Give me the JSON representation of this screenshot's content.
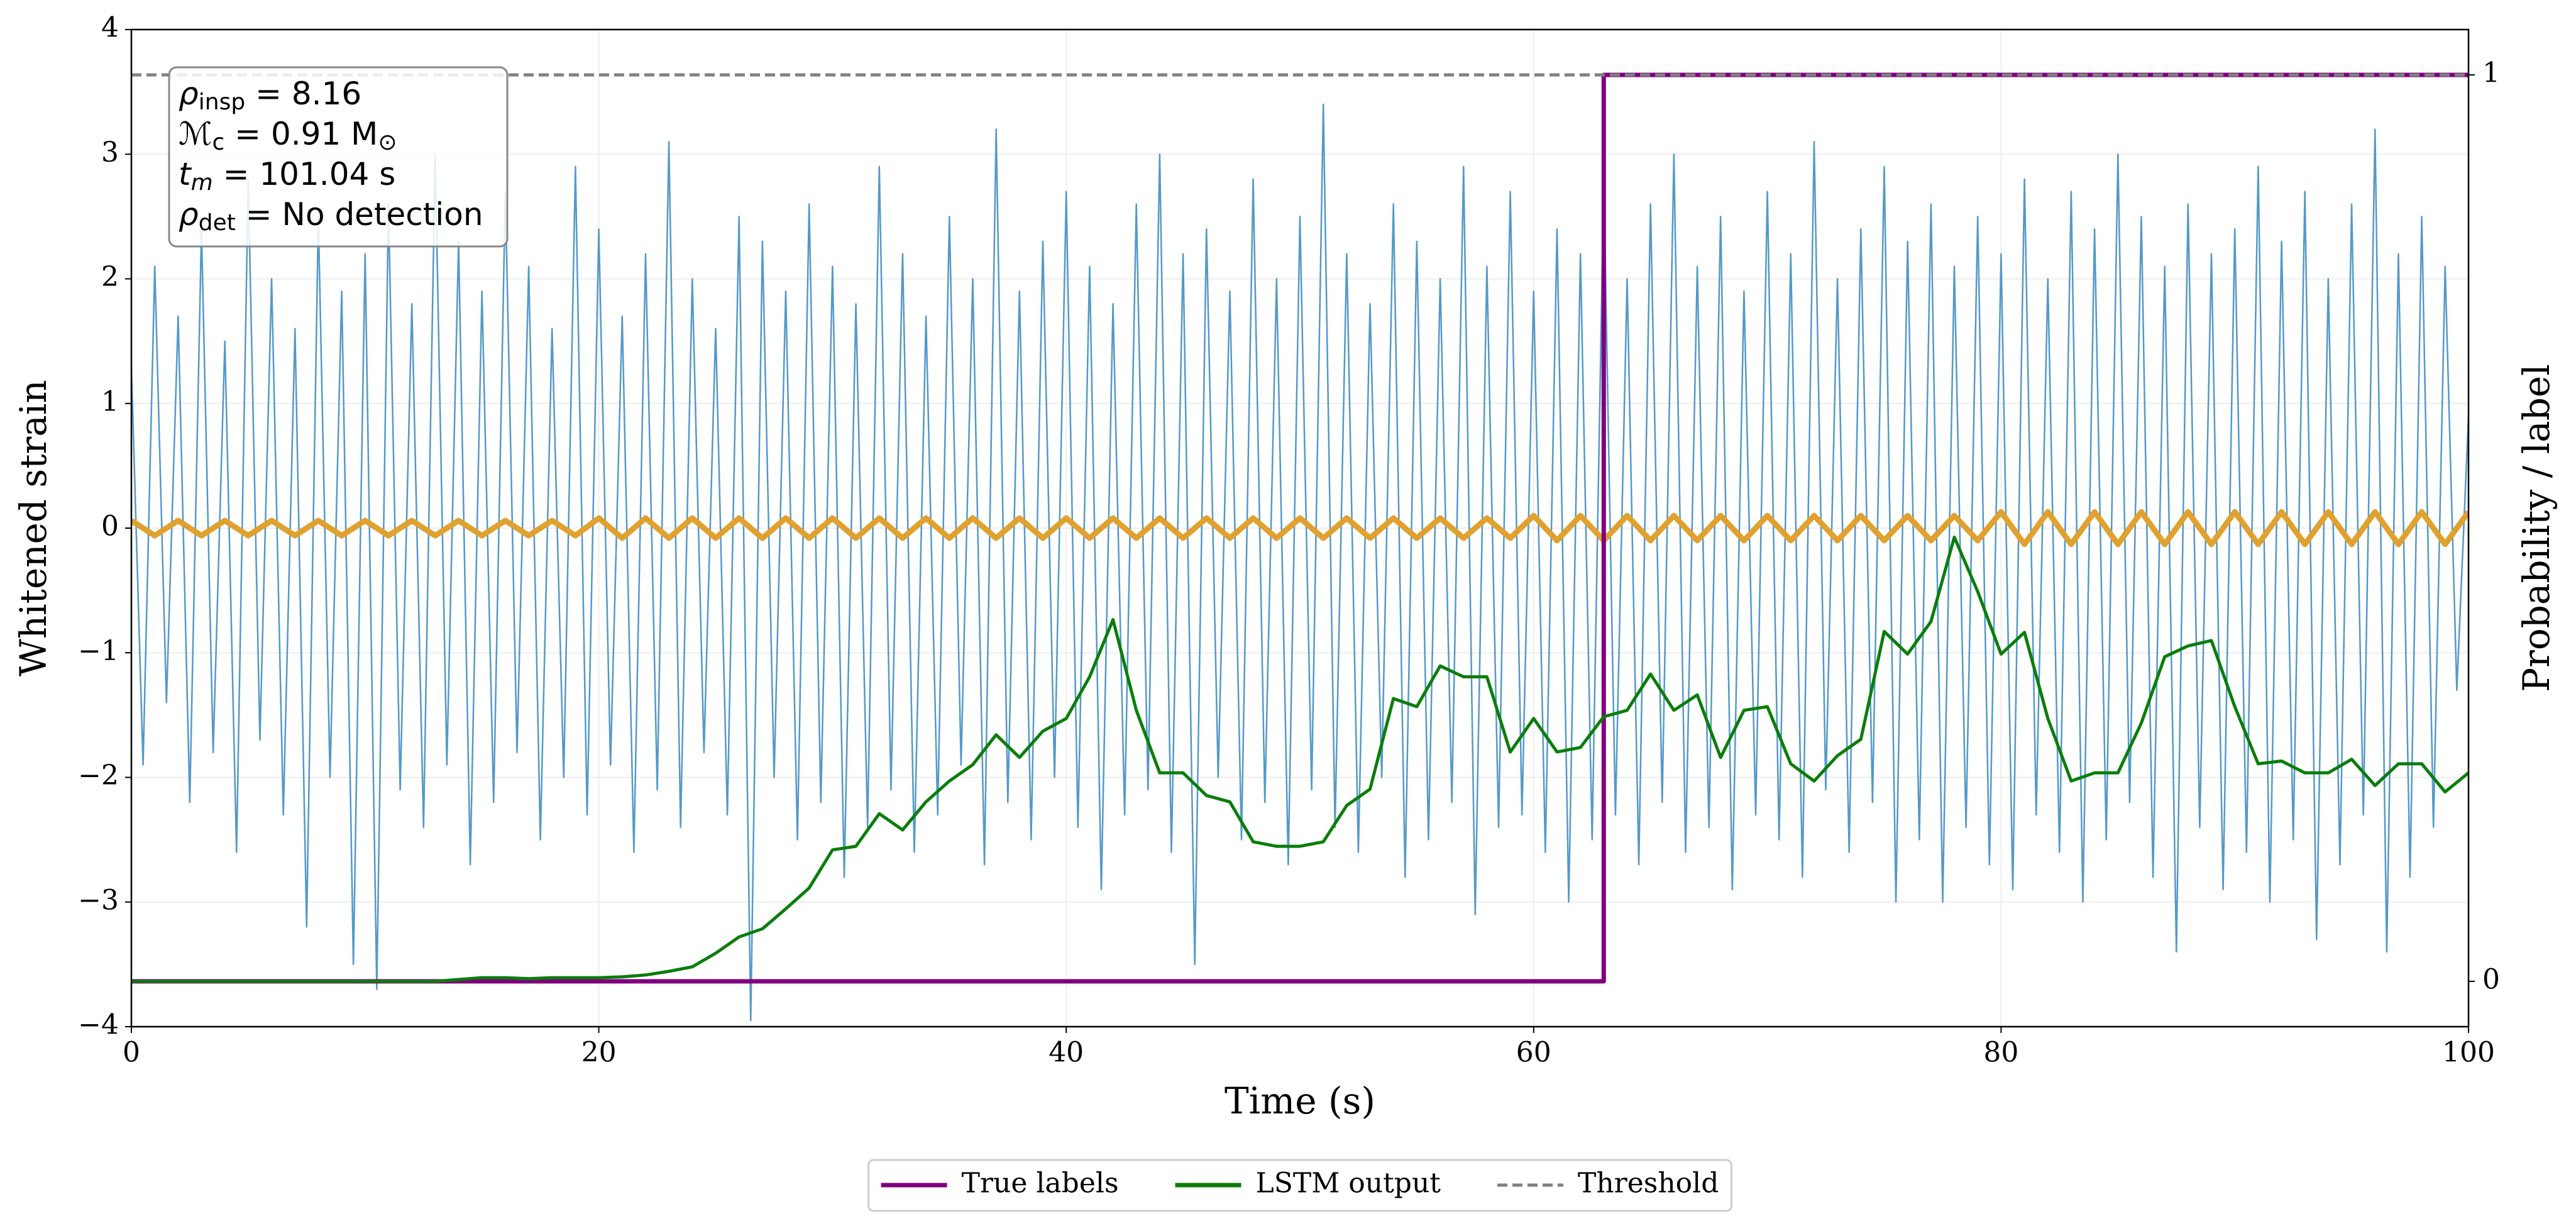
{
  "chart_data": {
    "type": "line",
    "xlabel": "Time (s)",
    "ylabel": "Whitened strain",
    "y2label": "Probability / label",
    "xlim": [
      0,
      100
    ],
    "xticks": [
      0,
      20,
      40,
      60,
      80,
      100
    ],
    "ylim": [
      -4,
      4
    ],
    "yticks": [
      {
        "value": -4,
        "label": "−4"
      },
      {
        "value": -3,
        "label": "−3"
      },
      {
        "value": -2,
        "label": "−2"
      },
      {
        "value": -1,
        "label": "−1"
      },
      0,
      1,
      2,
      3,
      4
    ],
    "y2lim": [
      -0.05,
      1.05
    ],
    "y2ticks": [
      0,
      1
    ],
    "grid": true,
    "legend": "below",
    "annotation": [
      {
        "symbol": "ρ",
        "subscript": "insp",
        "text": " = 8.16"
      },
      {
        "symbol": "ℳ",
        "subscript": "c",
        "text": " = 0.91 M",
        "unit_subscript": "⊙"
      },
      {
        "symbol": "t",
        "subscript": "m",
        "text": " = 101.04 s"
      },
      {
        "symbol": "ρ",
        "subscript": "det",
        "text": " = No detection"
      }
    ],
    "series": [
      {
        "color": "#5499c7",
        "x": [
          0,
          0.5,
          1,
          1.5,
          2,
          2.5,
          3,
          3.5,
          4,
          4.5,
          5,
          5.5,
          6,
          6.5,
          7,
          7.5,
          8,
          8.5,
          9,
          9.5,
          10,
          10.5,
          11,
          11.5,
          12,
          12.5,
          13,
          13.5,
          14,
          14.5,
          15,
          15.5,
          16,
          16.5,
          17,
          17.5,
          18,
          18.5,
          19,
          19.5,
          20,
          20.5,
          21,
          21.5,
          22,
          22.5,
          23,
          23.5,
          24,
          24.5,
          25,
          25.5,
          26,
          26.5,
          27,
          27.5,
          28,
          28.5,
          29,
          29.5,
          30,
          30.5,
          31,
          31.5,
          32,
          32.5,
          33,
          33.5,
          34,
          34.5,
          35,
          35.5,
          36,
          36.5,
          37,
          37.5,
          38,
          38.5,
          39,
          39.5,
          40,
          40.5,
          41,
          41.5,
          42,
          42.5,
          43,
          43.5,
          44,
          44.5,
          45,
          45.5,
          46,
          46.5,
          47,
          47.5,
          48,
          48.5,
          49,
          49.5,
          50,
          50.5,
          51,
          51.5,
          52,
          52.5,
          53,
          53.5,
          54,
          54.5,
          55,
          55.5,
          56,
          56.5,
          57,
          57.5,
          58,
          58.5,
          59,
          59.5,
          60,
          60.5,
          61,
          61.5,
          62,
          62.5,
          63,
          63.5,
          64,
          64.5,
          65,
          65.5,
          66,
          66.5,
          67,
          67.5,
          68,
          68.5,
          69,
          69.5,
          70,
          70.5,
          71,
          71.5,
          72,
          72.5,
          73,
          73.5,
          74,
          74.5,
          75,
          75.5,
          76,
          76.5,
          77,
          77.5,
          78,
          78.5,
          79,
          79.5,
          80,
          80.5,
          81,
          81.5,
          82,
          82.5,
          83,
          83.5,
          84,
          84.5,
          85,
          85.5,
          86,
          86.5,
          87,
          87.5,
          88,
          88.5,
          89,
          89.5,
          90,
          90.5,
          91,
          91.5,
          92,
          92.5,
          93,
          93.5,
          94,
          94.5,
          95,
          95.5,
          96,
          96.5,
          97,
          97.5,
          98,
          98.5,
          99,
          99.5,
          100
        ],
        "values": [
          1.3,
          -1.9,
          2.1,
          -1.4,
          1.7,
          -2.2,
          2.4,
          -1.8,
          1.5,
          -2.6,
          2.8,
          -1.7,
          2.0,
          -2.3,
          1.6,
          -3.2,
          2.5,
          -2.0,
          1.9,
          -3.5,
          2.2,
          -3.7,
          2.6,
          -2.1,
          1.8,
          -2.4,
          3.0,
          -1.9,
          2.3,
          -2.7,
          1.9,
          -2.2,
          2.7,
          -1.8,
          2.1,
          -2.5,
          1.6,
          -2.0,
          2.9,
          -2.3,
          2.4,
          -1.9,
          1.7,
          -2.6,
          2.2,
          -2.1,
          3.1,
          -2.4,
          2.0,
          -1.8,
          1.6,
          -2.3,
          2.5,
          -3.95,
          2.3,
          -2.0,
          1.9,
          -2.5,
          2.6,
          -2.2,
          2.1,
          -2.8,
          1.8,
          -2.4,
          2.9,
          -2.1,
          2.2,
          -2.6,
          1.7,
          -2.3,
          2.5,
          -1.9,
          2.0,
          -2.7,
          3.2,
          -2.2,
          1.9,
          -2.5,
          2.3,
          -2.0,
          2.7,
          -2.4,
          2.1,
          -2.9,
          1.8,
          -2.3,
          2.6,
          -2.1,
          3.0,
          -2.6,
          2.2,
          -3.5,
          2.4,
          -2.0,
          1.9,
          -2.5,
          2.8,
          -2.2,
          2.0,
          -2.7,
          2.5,
          -2.1,
          3.4,
          -2.4,
          2.2,
          -2.6,
          1.8,
          -2.0,
          2.6,
          -2.8,
          2.3,
          -2.5,
          2.0,
          -2.2,
          2.9,
          -3.1,
          2.1,
          -2.4,
          2.7,
          -2.3,
          1.9,
          -2.6,
          2.4,
          -3.0,
          2.2,
          -2.5,
          2.8,
          -2.3,
          2.0,
          -2.7,
          2.6,
          -2.2,
          3.0,
          -2.6,
          2.1,
          -2.4,
          2.5,
          -2.9,
          1.9,
          -2.3,
          2.7,
          -2.5,
          2.2,
          -2.8,
          3.1,
          -2.1,
          2.0,
          -2.6,
          2.4,
          -2.2,
          2.9,
          -3.0,
          2.3,
          -2.5,
          2.6,
          -3.0,
          2.1,
          -2.4,
          2.5,
          -2.7,
          2.2,
          -2.9,
          2.8,
          -2.3,
          2.0,
          -2.6,
          2.7,
          -3.0,
          2.4,
          -2.5,
          3.0,
          -2.2,
          2.5,
          -2.8,
          2.1,
          -3.4,
          2.6,
          -2.4,
          2.2,
          -2.9,
          2.4,
          -2.6,
          2.9,
          -3.0,
          2.3,
          -2.5,
          2.7,
          -3.3,
          2.0,
          -2.7,
          2.6,
          -2.3,
          3.2,
          -3.4,
          2.2,
          -2.8,
          2.5,
          -2.4,
          2.1,
          -1.3,
          0.9
        ]
      },
      {
        "color": "#e0a12e",
        "x": [
          0,
          1,
          2,
          3,
          4,
          5,
          6,
          7,
          8,
          9,
          10,
          11,
          12,
          13,
          14,
          15,
          16,
          17,
          18,
          19,
          20,
          21,
          22,
          23,
          24,
          25,
          26,
          27,
          28,
          29,
          30,
          31,
          32,
          33,
          34,
          35,
          36,
          37,
          38,
          39,
          40,
          41,
          42,
          43,
          44,
          45,
          46,
          47,
          48,
          49,
          50,
          51,
          52,
          53,
          54,
          55,
          56,
          57,
          58,
          59,
          60,
          61,
          62,
          63,
          64,
          65,
          66,
          67,
          68,
          69,
          70,
          71,
          72,
          73,
          74,
          75,
          76,
          77,
          78,
          79,
          80,
          81,
          82,
          83,
          84,
          85,
          86,
          87,
          88,
          89,
          90,
          91,
          92,
          93,
          94,
          95,
          96,
          97,
          98,
          99,
          100
        ],
        "values": [
          0.06,
          -0.06,
          0.06,
          -0.06,
          0.06,
          -0.06,
          0.06,
          -0.06,
          0.06,
          -0.06,
          0.06,
          -0.06,
          0.06,
          -0.06,
          0.06,
          -0.06,
          0.06,
          -0.06,
          0.06,
          -0.06,
          0.08,
          -0.08,
          0.08,
          -0.08,
          0.08,
          -0.08,
          0.08,
          -0.08,
          0.08,
          -0.08,
          0.08,
          -0.08,
          0.08,
          -0.08,
          0.08,
          -0.08,
          0.08,
          -0.08,
          0.08,
          -0.08,
          0.08,
          -0.08,
          0.08,
          -0.08,
          0.08,
          -0.08,
          0.08,
          -0.08,
          0.08,
          -0.08,
          0.08,
          -0.08,
          0.08,
          -0.08,
          0.08,
          -0.08,
          0.08,
          -0.08,
          0.08,
          -0.08,
          0.1,
          -0.1,
          0.1,
          -0.1,
          0.1,
          -0.1,
          0.1,
          -0.1,
          0.1,
          -0.1,
          0.1,
          -0.1,
          0.1,
          -0.1,
          0.1,
          -0.1,
          0.1,
          -0.1,
          0.1,
          -0.1,
          0.13,
          -0.13,
          0.13,
          -0.13,
          0.13,
          -0.13,
          0.13,
          -0.13,
          0.13,
          -0.13,
          0.13,
          -0.13,
          0.13,
          -0.13,
          0.13,
          -0.13,
          0.13,
          -0.13,
          0.13,
          -0.13,
          0.13
        ]
      },
      {
        "name": "True labels",
        "color": "#800080",
        "axis": "y2",
        "x": [
          0,
          63,
          63,
          100
        ],
        "values": [
          0,
          0,
          1,
          1
        ]
      },
      {
        "name": "LSTM output",
        "color": "#0b7d0b",
        "axis": "y2",
        "x": [
          0,
          1,
          2,
          3,
          4,
          5,
          6,
          7,
          8,
          9,
          10,
          11,
          12,
          13,
          14,
          15,
          16,
          17,
          18,
          19,
          20,
          21,
          22,
          23,
          24,
          25,
          26,
          27,
          28,
          29,
          30,
          31,
          32,
          33,
          34,
          35,
          36,
          37,
          38,
          39,
          40,
          41,
          42,
          43,
          44,
          45,
          46,
          47,
          48,
          49,
          50,
          51,
          52,
          53,
          54,
          55,
          56,
          57,
          58,
          59,
          60,
          61,
          62,
          63,
          64,
          65,
          66,
          67,
          68,
          69,
          70,
          71,
          72,
          73,
          74,
          75,
          76,
          77,
          78,
          79,
          80,
          81,
          82,
          83,
          84,
          85,
          86,
          87,
          88,
          89,
          90,
          91,
          92,
          93,
          94,
          95,
          96,
          97,
          98,
          99,
          100
        ],
        "values": [
          0,
          0,
          0,
          0,
          0,
          0,
          0,
          0,
          0,
          0,
          0,
          0,
          0,
          0,
          0.002,
          0.004,
          0.004,
          0.003,
          0.004,
          0.004,
          0.004,
          0.005,
          0.007,
          0.011,
          0.016,
          0.031,
          0.049,
          0.058,
          0.08,
          0.103,
          0.145,
          0.149,
          0.185,
          0.167,
          0.198,
          0.221,
          0.239,
          0.272,
          0.247,
          0.276,
          0.29,
          0.336,
          0.399,
          0.299,
          0.23,
          0.23,
          0.205,
          0.198,
          0.154,
          0.149,
          0.149,
          0.154,
          0.194,
          0.212,
          0.312,
          0.303,
          0.348,
          0.336,
          0.336,
          0.253,
          0.29,
          0.253,
          0.258,
          0.292,
          0.299,
          0.339,
          0.299,
          0.316,
          0.247,
          0.299,
          0.303,
          0.24,
          0.221,
          0.249,
          0.267,
          0.386,
          0.361,
          0.397,
          0.49,
          0.43,
          0.361,
          0.385,
          0.29,
          0.221,
          0.23,
          0.23,
          0.285,
          0.358,
          0.37,
          0.376,
          0.303,
          0.24,
          0.243,
          0.23,
          0.23,
          0.245,
          0.216,
          0.24,
          0.24,
          0.209,
          0.23
        ]
      },
      {
        "name": "Threshold",
        "color": "#808080",
        "axis": "y2",
        "linestyle": "dashed",
        "x": [
          0,
          100
        ],
        "values": [
          1,
          1
        ]
      }
    ]
  }
}
